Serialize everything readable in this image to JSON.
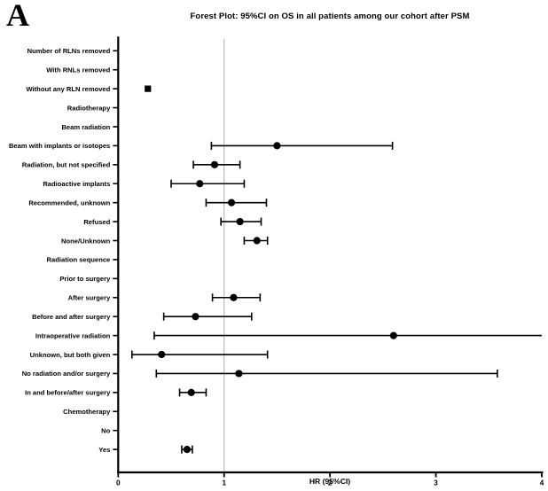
{
  "page": {
    "panel_label": "A"
  },
  "chart_data": {
    "type": "scatter",
    "subtype": "forest-plot",
    "title": "Forest Plot: 95%CI on OS in all patients among our cohort after PSM",
    "xlabel": "HR (95%CI)",
    "xlim": [
      0,
      4
    ],
    "xticks": [
      0,
      1,
      2,
      3,
      4
    ],
    "reference_line_x": 1,
    "grid": false,
    "legend": "none",
    "colors": {
      "point": "#000000",
      "axis": "#000000",
      "reference_line": "#b3b3b3",
      "background": "#ffffff"
    },
    "categories": [
      "Number of RLNs removed",
      "With RNLs removed",
      "Without any RLN removed",
      "Radiotherapy",
      "Beam radiation",
      "Beam with implants or isotopes",
      "Radiation, but not specified",
      "Radioactive implants",
      "Recommended, unknown",
      "Refused",
      "None/Unknown",
      "Radiation sequence",
      "Prior to surgery",
      "After surgery",
      "Before and after surgery",
      "Intraoperative radiation",
      "Unknown, but both given",
      "No radiation and/or surgery",
      "In and before/after surgery",
      "Chemotherapy",
      "No",
      "Yes"
    ],
    "rows": [
      {
        "label": "Number of RLNs removed",
        "hr": null,
        "lo": null,
        "hi": null
      },
      {
        "label": "With RNLs removed",
        "hr": null,
        "lo": null,
        "hi": null
      },
      {
        "label": "Without any RLN removed",
        "hr": 0.28,
        "lo": 0.26,
        "hi": 0.31,
        "marker": "square",
        "caps": false
      },
      {
        "label": "Radiotherapy",
        "hr": null,
        "lo": null,
        "hi": null
      },
      {
        "label": "Beam radiation",
        "hr": null,
        "lo": null,
        "hi": null
      },
      {
        "label": "Beam with implants or isotopes",
        "hr": 1.5,
        "lo": 0.88,
        "hi": 2.59,
        "marker": "circle"
      },
      {
        "label": "Radiation, but not specified",
        "hr": 0.91,
        "lo": 0.71,
        "hi": 1.15,
        "marker": "circle"
      },
      {
        "label": "Radioactive implants",
        "hr": 0.77,
        "lo": 0.5,
        "hi": 1.19,
        "marker": "circle"
      },
      {
        "label": "Recommended, unknown",
        "hr": 1.07,
        "lo": 0.83,
        "hi": 1.4,
        "marker": "circle"
      },
      {
        "label": "Refused",
        "hr": 1.15,
        "lo": 0.97,
        "hi": 1.35,
        "marker": "circle"
      },
      {
        "label": "None/Unknown",
        "hr": 1.31,
        "lo": 1.19,
        "hi": 1.41,
        "marker": "circle"
      },
      {
        "label": "Radiation sequence",
        "hr": null,
        "lo": null,
        "hi": null
      },
      {
        "label": "Prior to surgery",
        "hr": null,
        "lo": null,
        "hi": null
      },
      {
        "label": "After surgery",
        "hr": 1.09,
        "lo": 0.89,
        "hi": 1.34,
        "marker": "circle"
      },
      {
        "label": "Before and after surgery",
        "hr": 0.73,
        "lo": 0.43,
        "hi": 1.26,
        "marker": "circle"
      },
      {
        "label": "Intraoperative radiation",
        "hr": 2.6,
        "lo": 0.34,
        "hi": 4.0,
        "marker": "circle",
        "hi_clipped": true
      },
      {
        "label": "Unknown, but both given",
        "hr": 0.41,
        "lo": 0.13,
        "hi": 1.41,
        "marker": "circle"
      },
      {
        "label": "No radiation and/or surgery",
        "hr": 1.14,
        "lo": 0.36,
        "hi": 3.58,
        "marker": "circle"
      },
      {
        "label": "In and before/after surgery",
        "hr": 0.69,
        "lo": 0.58,
        "hi": 0.83,
        "marker": "circle"
      },
      {
        "label": "Chemotherapy",
        "hr": null,
        "lo": null,
        "hi": null
      },
      {
        "label": "No",
        "hr": null,
        "lo": null,
        "hi": null
      },
      {
        "label": "Yes",
        "hr": 0.65,
        "lo": 0.6,
        "hi": 0.7,
        "marker": "circle"
      }
    ]
  }
}
